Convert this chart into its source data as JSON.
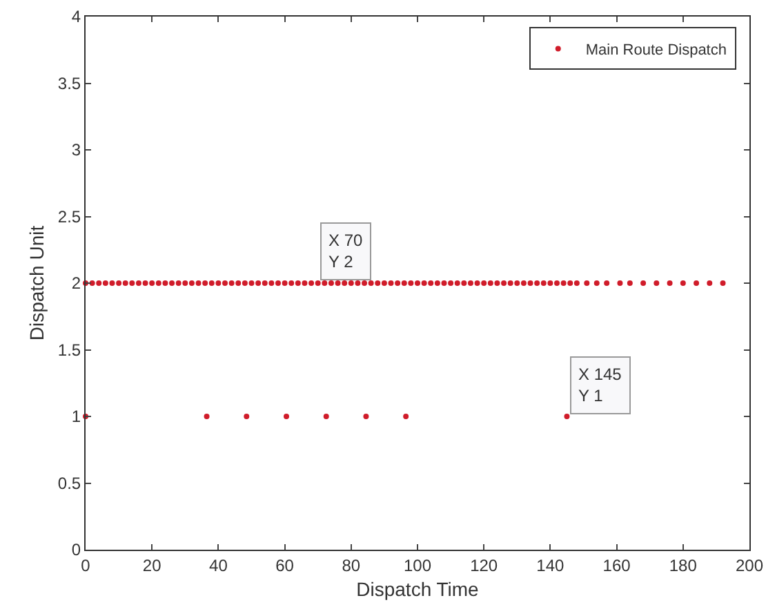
{
  "chart_data": {
    "type": "scatter",
    "xlabel": "Dispatch Time",
    "ylabel": "Dispatch Unit",
    "series": [
      {
        "name": "Main Route Dispatch",
        "color": "#d01c2a",
        "x": [
          0,
          2,
          4,
          6,
          8,
          10,
          12,
          14,
          16,
          18,
          20,
          22,
          24,
          26,
          28,
          30,
          32,
          34,
          36,
          38,
          40,
          42,
          44,
          46,
          48,
          50,
          52,
          54,
          56,
          58,
          60,
          62,
          64,
          66,
          68,
          70,
          72,
          74,
          76,
          78,
          80,
          82,
          84,
          86,
          88,
          90,
          92,
          94,
          96,
          98,
          100,
          102,
          104,
          106,
          108,
          110,
          112,
          114,
          116,
          118,
          120,
          122,
          124,
          126,
          128,
          130,
          132,
          134,
          136,
          138,
          140,
          142,
          144,
          146,
          148,
          151,
          154,
          157,
          161,
          164,
          168,
          172,
          176,
          180,
          184,
          188,
          192,
          0,
          36.5,
          48.5,
          60.5,
          72.5,
          84.5,
          96.5,
          145
        ],
        "values": [
          2,
          2,
          2,
          2,
          2,
          2,
          2,
          2,
          2,
          2,
          2,
          2,
          2,
          2,
          2,
          2,
          2,
          2,
          2,
          2,
          2,
          2,
          2,
          2,
          2,
          2,
          2,
          2,
          2,
          2,
          2,
          2,
          2,
          2,
          2,
          2,
          2,
          2,
          2,
          2,
          2,
          2,
          2,
          2,
          2,
          2,
          2,
          2,
          2,
          2,
          2,
          2,
          2,
          2,
          2,
          2,
          2,
          2,
          2,
          2,
          2,
          2,
          2,
          2,
          2,
          2,
          2,
          2,
          2,
          2,
          2,
          2,
          2,
          2,
          2,
          2,
          2,
          2,
          2,
          2,
          2,
          2,
          2,
          2,
          2,
          2,
          2,
          1,
          1,
          1,
          1,
          1,
          1,
          1,
          1
        ]
      }
    ],
    "xlim": [
      0,
      200
    ],
    "xticks": [
      0,
      20,
      40,
      60,
      80,
      100,
      120,
      140,
      160,
      180,
      200
    ],
    "ylim": [
      0,
      4
    ],
    "yticks": [
      0,
      0.5,
      1,
      1.5,
      2,
      2.5,
      3,
      3.5,
      4
    ],
    "marker": "circle",
    "legend": "top right",
    "grid": false,
    "annotations": [
      {
        "text": "X 70\nY 2",
        "x": 70,
        "y": 2
      },
      {
        "text": "X 145\nY 1",
        "x": 145,
        "y": 1
      }
    ]
  }
}
